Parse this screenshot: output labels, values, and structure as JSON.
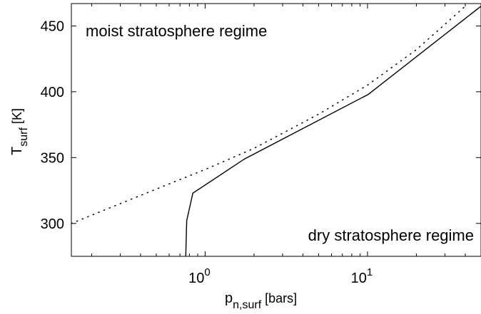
{
  "chart_data": {
    "type": "line",
    "title": "",
    "xscale": "log",
    "xlim": [
      0.15,
      50
    ],
    "ylim": [
      275,
      467
    ],
    "x_ticks": [
      {
        "base": "10",
        "exp": "0"
      },
      {
        "base": "10",
        "exp": "1"
      }
    ],
    "y_ticks": [
      "300",
      "350",
      "400",
      "450"
    ],
    "y_tick_values": [
      300,
      350,
      400,
      450
    ],
    "x_tick_values": [
      1,
      10
    ],
    "xlabel": {
      "main": "p",
      "sub": "n,surf",
      "unit": " [bars]"
    },
    "ylabel": {
      "main": "T",
      "sub": "surf",
      "unit": " [K]"
    },
    "annotations": {
      "upper": "moist stratosphere regime",
      "lower": "dry stratosphere regime"
    },
    "series": [
      {
        "style": "solid",
        "color": "#000000",
        "x": [
          0.76,
          0.77,
          0.84,
          1.75,
          10.1,
          50
        ],
        "y": [
          275,
          302,
          323,
          349,
          398,
          465
        ]
      },
      {
        "style": "dotted",
        "color": "#000000",
        "x": [
          0.15,
          0.3,
          0.6,
          1.0,
          2.0,
          5.0,
          10.0,
          20.0,
          40.0
        ],
        "y": [
          300,
          315,
          330,
          341,
          357,
          383,
          405,
          432,
          465
        ]
      }
    ],
    "grid": false,
    "legend": "none"
  }
}
